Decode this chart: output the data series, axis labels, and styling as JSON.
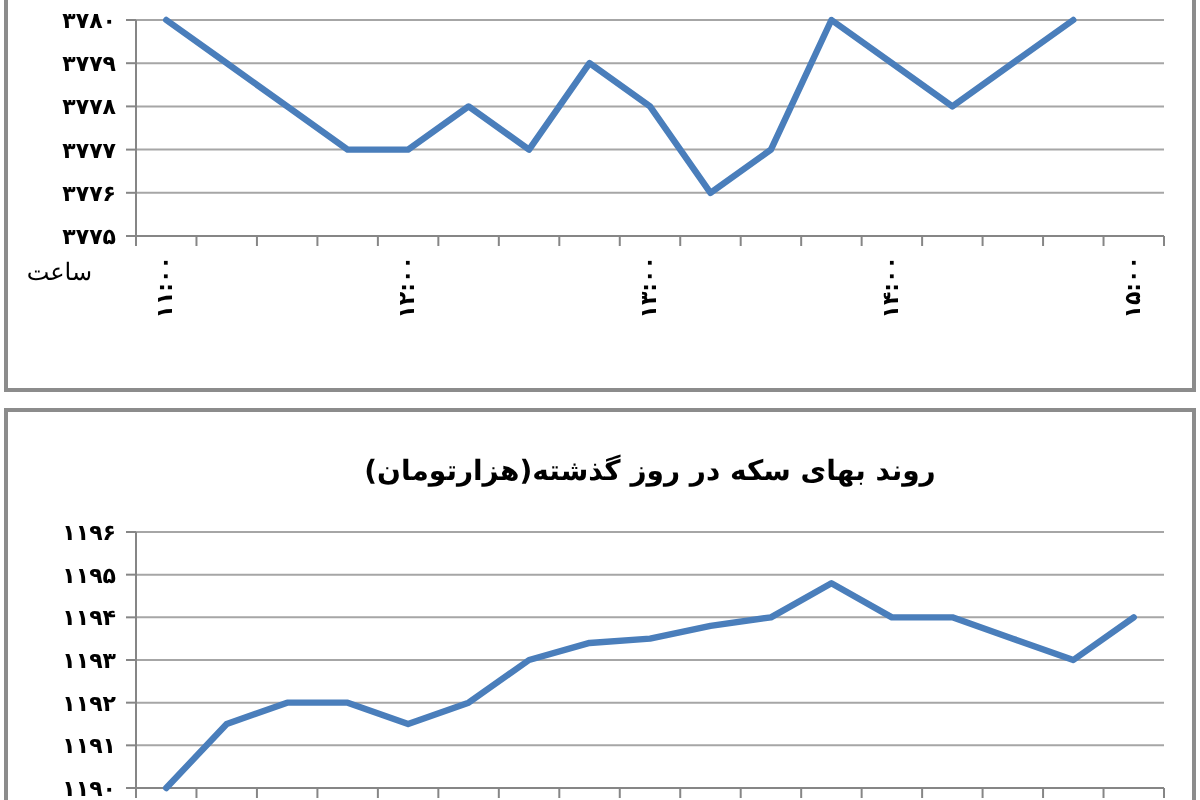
{
  "chart_data": [
    {
      "type": "line",
      "xlabel": "ساعت",
      "color": "#4a7ebb",
      "grid": "y",
      "categories": [
        "۱۱:۰۰",
        null,
        null,
        null,
        "۱۲:۰۰",
        null,
        null,
        null,
        "۱۳:۰۰",
        null,
        null,
        null,
        "۱۴:۰۰",
        null,
        null,
        null,
        "۱۵:۰۰"
      ],
      "values": [
        3780,
        3779,
        3778,
        3777,
        3777,
        3778,
        3777,
        3779,
        3778,
        3776,
        3777,
        3780,
        3779,
        3778,
        3779,
        3780,
        null
      ],
      "ylim": [
        3775,
        3780
      ],
      "yticks": [
        {
          "value": 3775,
          "label": "۳۷۷۵"
        },
        {
          "value": 3776,
          "label": "۳۷۷۶"
        },
        {
          "value": 3777,
          "label": "۳۷۷۷"
        },
        {
          "value": 3778,
          "label": "۳۷۷۸"
        },
        {
          "value": 3779,
          "label": "۳۷۷۹"
        },
        {
          "value": 3780,
          "label": "۳۷۸۰"
        }
      ]
    },
    {
      "type": "line",
      "title": "روند بهای سکه در روز گذشته(هزارتومان)",
      "color": "#4a7ebb",
      "grid": "y",
      "tick_labels": "y",
      "categories": [
        null,
        null,
        null,
        null,
        null,
        null,
        null,
        null,
        null,
        null,
        null,
        null,
        null,
        null,
        null,
        null,
        null
      ],
      "values": [
        1190,
        1191.5,
        1192,
        1192,
        1191.5,
        1192,
        1193,
        1193.4,
        1193.5,
        1193.8,
        1194,
        1194.8,
        1194,
        1194,
        1193.5,
        1193,
        1194
      ],
      "ylim": [
        1190,
        1196
      ],
      "yticks": [
        {
          "value": 1190,
          "label": "۱۱۹۰"
        },
        {
          "value": 1191,
          "label": "۱۱۹۱"
        },
        {
          "value": 1192,
          "label": "۱۱۹۲"
        },
        {
          "value": 1193,
          "label": "۱۱۹۳"
        },
        {
          "value": 1194,
          "label": "۱۱۹۴"
        },
        {
          "value": 1195,
          "label": "۱۱۹۵"
        },
        {
          "value": 1196,
          "label": "۱۱۹۶"
        }
      ]
    }
  ]
}
